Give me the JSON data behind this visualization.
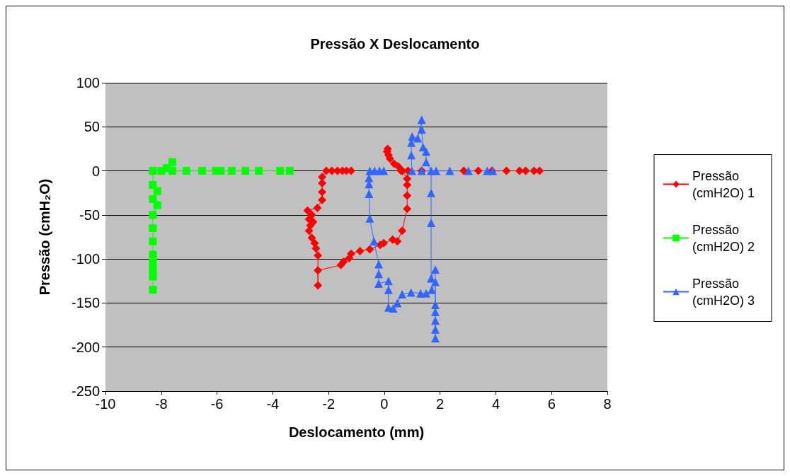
{
  "chart_data": {
    "type": "line",
    "title": "Pressão X Deslocamento",
    "xlabel": "Deslocamento (mm)",
    "ylabel": "Pressão (cmH₂O)",
    "xlim": [
      -10,
      8
    ],
    "xticks": [
      -10,
      -8,
      -6,
      -4,
      -2,
      0,
      2,
      4,
      6,
      8
    ],
    "ylim": [
      -250,
      100
    ],
    "yticks": [
      -250,
      -200,
      -150,
      -100,
      -50,
      0,
      50,
      100
    ],
    "grid": "y",
    "legend": "right",
    "series": [
      {
        "name": "Pressão (cmH2O) 1",
        "color": "#ff0000",
        "marker": "diamond",
        "x": [
          5.57,
          5.37,
          5.07,
          4.85,
          4.38,
          3.86,
          3.37,
          2.85,
          1.34,
          0.85,
          0.6,
          0.15,
          0.12,
          0.1,
          0.2,
          0.35,
          0.5,
          0.65,
          0.82,
          0.82,
          0.82,
          0.82,
          0.64,
          0.47,
          0.3,
          -0.02,
          -0.15,
          -0.52,
          -0.87,
          -1.19,
          -1.26,
          -1.46,
          -1.56,
          -2.38,
          -2.38,
          -2.38,
          -2.45,
          -2.5,
          -2.6,
          -2.7,
          -2.65,
          -2.55,
          -2.7,
          -2.6,
          -2.75,
          -2.4,
          -2.23,
          -2.23,
          -2.23,
          -2.23,
          -2.08,
          -1.88,
          -1.68,
          -1.5,
          -1.36,
          -1.19
        ],
        "values": [
          0,
          0,
          0,
          0,
          0,
          0,
          0,
          0,
          0,
          0,
          0,
          18,
          25,
          22,
          14,
          8,
          5,
          0,
          -9,
          -16,
          -28,
          -43,
          -68,
          -80,
          -78,
          -82,
          -84,
          -89,
          -91,
          -94,
          -99,
          -103,
          -107,
          -113,
          -130,
          -96,
          -88,
          -82,
          -76,
          -68,
          -62,
          -58,
          -55,
          -50,
          -45,
          -42,
          -33,
          -24,
          -14,
          -7,
          0,
          0,
          0,
          0,
          0,
          0
        ]
      },
      {
        "name": "Pressão (cmH2O) 2",
        "color": "#00ff00",
        "marker": "square",
        "x": [
          -3.39,
          -3.74,
          -4.5,
          -4.98,
          -5.47,
          -5.87,
          -6.04,
          -6.53,
          -7.1,
          -7.6,
          -7.6,
          -7.8,
          -8.0,
          -8.3,
          -8.3,
          -8.14,
          -8.3,
          -8.14,
          -8.3,
          -8.3,
          -8.3,
          -8.3,
          -8.3,
          -8.3,
          -8.3,
          -8.3
        ],
        "values": [
          0,
          0,
          0,
          0,
          0,
          0,
          0,
          0,
          0,
          0,
          10,
          3,
          0,
          0,
          -16,
          -23,
          -32,
          -39,
          -50,
          -65,
          -80,
          -95,
          -104,
          -112,
          -120,
          -135
        ]
      },
      {
        "name": "Pressão (cmH2O) 3",
        "color": "#3366ff",
        "marker": "triangle",
        "x": [
          -0.02,
          -0.17,
          -0.35,
          -0.52,
          -0.55,
          -0.55,
          -0.55,
          -0.52,
          -0.37,
          -0.2,
          -0.2,
          -0.2,
          0.15,
          0.15,
          0.15,
          0.32,
          0.47,
          0.64,
          0.96,
          1.3,
          1.5,
          1.7,
          1.83,
          1.83,
          1.83,
          1.83,
          1.83,
          1.83,
          1.83,
          1.68,
          1.68,
          1.68,
          1.68,
          1.5,
          1.5,
          1.39,
          1.34,
          1.34,
          1.2,
          1.0,
          0.97,
          0.97,
          0.99,
          1.34,
          1.86,
          2.35,
          3.02,
          3.69,
          3.89
        ],
        "values": [
          0,
          0,
          0,
          0,
          -8,
          -15,
          -26,
          -54,
          -80,
          -106,
          -117,
          -128,
          -125,
          -135,
          -155,
          -156,
          -150,
          -140,
          -138,
          -139,
          -139,
          -135,
          -126,
          -152,
          -160,
          -170,
          -180,
          -190,
          -112,
          -122,
          -59,
          -25,
          0,
          10,
          22,
          27,
          47,
          58,
          37,
          39,
          32,
          18,
          0,
          0,
          0,
          0,
          0,
          0,
          0
        ]
      }
    ]
  }
}
